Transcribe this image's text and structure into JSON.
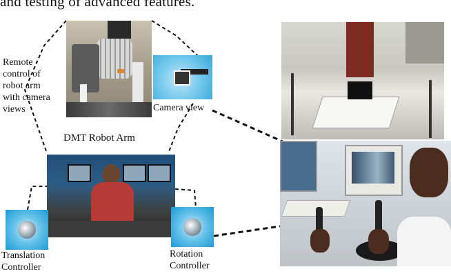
{
  "top_caption": "and testing of advanced features.",
  "labels": {
    "remote_control": [
      "Remote",
      "control of",
      "robot arm",
      "with camera",
      "views"
    ],
    "dmt_robot_arm": "DMT Robot Arm",
    "camera_view": "Camera view",
    "translation_controller": [
      "Translation",
      "Controller"
    ],
    "rotation_controller": [
      "Rotation",
      "Controller"
    ]
  }
}
